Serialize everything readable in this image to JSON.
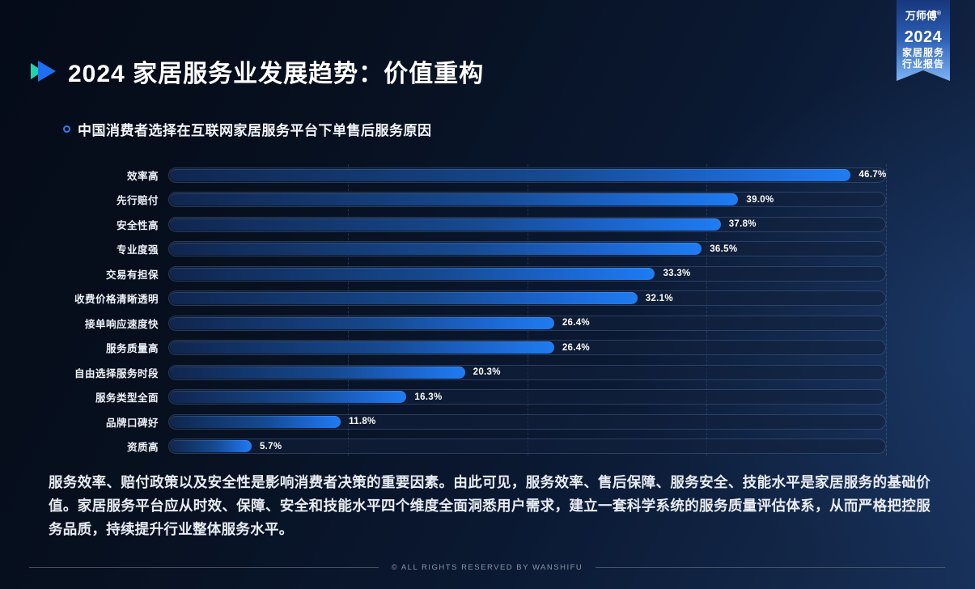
{
  "page": {
    "title": "2024 家居服务业发展趋势：价值重构",
    "subtitle": "中国消费者选择在互联网家居服务平台下单售后服务原因",
    "summary": "服务效率、赔付政策以及安全性是影响消费者决策的重要因素。由此可见，服务效率、售后保障、服务安全、技能水平是家居服务的基础价值。家居服务平台应从时效、保障、安全和技能水平四个维度全面洞悉用户需求，建立一套科学系统的服务质量评估体系，从而严格把控服务品质，持续提升行业整体服务水平。",
    "copyright": "© ALL RIGHTS RESERVED BY WANSHIFU"
  },
  "badge": {
    "brand": "万师傅",
    "reg_mark": "®",
    "year": "2024",
    "line1": "家居服务",
    "line2": "行业报告"
  },
  "chart_data": {
    "type": "bar",
    "orientation": "horizontal",
    "title": "中国消费者选择在互联网家居服务平台下单售后服务原因",
    "categories": [
      "效率高",
      "先行赔付",
      "安全性高",
      "专业度强",
      "交易有担保",
      "收费价格清晰透明",
      "接单响应速度快",
      "服务质量高",
      "自由选择服务时段",
      "服务类型全面",
      "品牌口碑好",
      "资质高"
    ],
    "values": [
      46.7,
      39.0,
      37.8,
      36.5,
      33.3,
      32.1,
      26.4,
      26.4,
      20.3,
      16.3,
      11.8,
      5.7
    ],
    "value_labels": [
      "46.7%",
      "39.0%",
      "37.8%",
      "36.5%",
      "33.3%",
      "32.1%",
      "26.4%",
      "26.4%",
      "20.3%",
      "16.3%",
      "11.8%",
      "5.7%"
    ],
    "xlim": [
      0,
      49
    ],
    "gridline_positions_pct": [
      25,
      50,
      75,
      100
    ],
    "grid": "dashed-vertical",
    "legend": "none"
  },
  "colors": {
    "background_dark": "#050b18",
    "background_light": "#18315a",
    "bar_gradient_start": "#10264e",
    "bar_gradient_end": "#1f7cf2",
    "accent_teal": "#1fd3ae",
    "accent_blue": "#1e6ff2",
    "track_border": "#5f7daf",
    "text_muted": "#8b94a6"
  }
}
